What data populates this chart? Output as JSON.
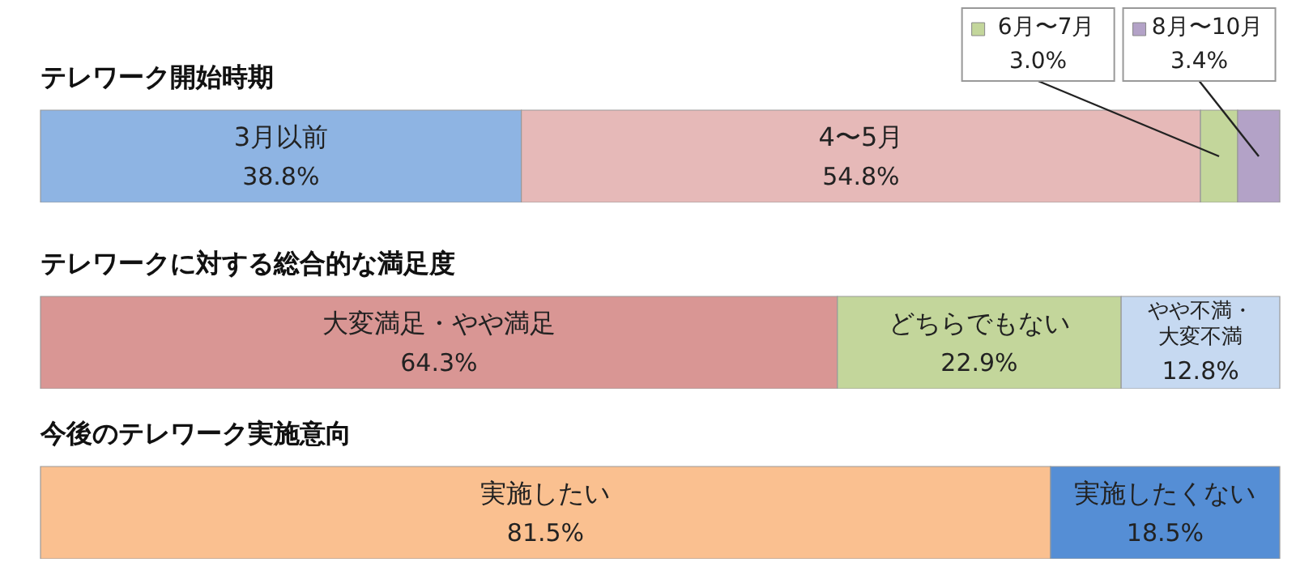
{
  "chart_data": [
    {
      "type": "bar",
      "orientation": "horizontal",
      "stacked": true,
      "title": "テレワーク開始時期",
      "categories": [
        null
      ],
      "xlim": [
        0,
        100
      ],
      "legend": "top right",
      "series": [
        {
          "name": "3月以前",
          "color": "#8eb4e3",
          "values": [
            38.8
          ],
          "value_labels": [
            "38.8%"
          ]
        },
        {
          "name": "4〜5月",
          "color": "#e6b9b8",
          "values": [
            54.8
          ],
          "value_labels": [
            "54.8%"
          ]
        },
        {
          "name": "6月〜7月",
          "color": "#c3d69b",
          "values": [
            3.0
          ],
          "value_labels": [
            "3.0%"
          ]
        },
        {
          "name": "8月〜10月",
          "color": "#b3a2c7",
          "values": [
            3.4
          ],
          "value_labels": [
            "3.4%"
          ]
        }
      ]
    },
    {
      "type": "bar",
      "orientation": "horizontal",
      "stacked": true,
      "title": "テレワークに対する総合的な満足度",
      "categories": [
        null
      ],
      "xlim": [
        0,
        100
      ],
      "series": [
        {
          "name": "大変満足・やや満足",
          "color": "#d99694",
          "values": [
            64.3
          ],
          "value_labels": [
            "64.3%"
          ]
        },
        {
          "name": "どちらでもない",
          "color": "#c3d69b",
          "values": [
            22.9
          ],
          "value_labels": [
            "22.9%"
          ]
        },
        {
          "name": "やや不満・大変不満",
          "color": "#c6d9f1",
          "values": [
            12.8
          ],
          "value_labels": [
            "12.8%"
          ]
        }
      ]
    },
    {
      "type": "bar",
      "orientation": "horizontal",
      "stacked": true,
      "title": "今後のテレワーク実施意向",
      "categories": [
        null
      ],
      "xlim": [
        0,
        100
      ],
      "series": [
        {
          "name": "実施したい",
          "color": "#fac090",
          "values": [
            81.5
          ],
          "value_labels": [
            "81.5%"
          ]
        },
        {
          "name": "実施したくない",
          "color": "#558ed5",
          "values": [
            18.5
          ],
          "value_labels": [
            "18.5%"
          ]
        }
      ]
    }
  ]
}
